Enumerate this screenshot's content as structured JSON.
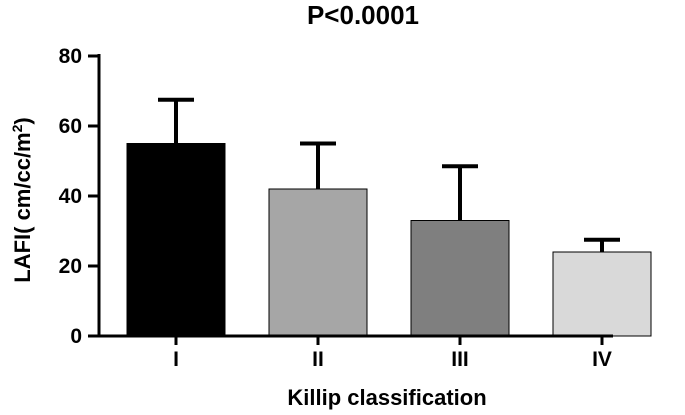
{
  "chart_data": {
    "type": "bar",
    "title": "P<0.0001",
    "xlabel": "Killip classification",
    "ylabel_main": "LAFI( cm/cc/m",
    "ylabel_sup": "2",
    "ylabel_close": ")",
    "categories": [
      "I",
      "II",
      "III",
      "IV"
    ],
    "values": [
      55,
      42,
      33,
      24
    ],
    "error_upper": [
      67.5,
      55,
      48.5,
      27.5
    ],
    "bar_colors": [
      "#000000",
      "#a6a6a6",
      "#7f7f7f",
      "#d9d9d9"
    ],
    "ylim": [
      0,
      80
    ],
    "yticks": [
      0,
      20,
      40,
      60,
      80
    ],
    "grid": false
  }
}
